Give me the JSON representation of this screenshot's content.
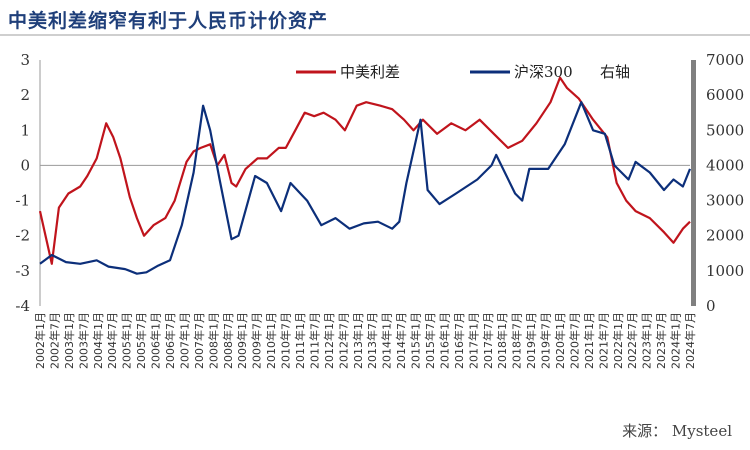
{
  "title": "中美利差缩窄有利于人民币计价资产",
  "source": "来源： Mysteel",
  "colors": {
    "series1": "#c0141c",
    "series2": "#0c2f7a",
    "right_axis_bar": "#808080",
    "title": "#1f3f7a"
  },
  "chart_data": {
    "type": "line",
    "grid": false,
    "legend": "top",
    "y_left": {
      "ylim": [
        -4,
        3
      ],
      "ticks": [
        "3",
        "2",
        "1",
        "0",
        "-1",
        "-2",
        "-3",
        "-4"
      ]
    },
    "y_right": {
      "label": "右轴",
      "ylim": [
        0,
        7000
      ],
      "ticks": [
        "7000",
        "6000",
        "5000",
        "4000",
        "3000",
        "2000",
        "1000",
        "0"
      ]
    },
    "x_ticks": [
      "2002年1月",
      "2002年7月",
      "2003年1月",
      "2003年7月",
      "2004年1月",
      "2004年7月",
      "2005年1月",
      "2005年7月",
      "2006年1月",
      "2006年7月",
      "2007年1月",
      "2007年7月",
      "2008年1月",
      "2008年7月",
      "2009年1月",
      "2009年7月",
      "2010年1月",
      "2010年7月",
      "2011年1月",
      "2011年7月",
      "2012年1月",
      "2012年7月",
      "2013年1月",
      "2013年7月",
      "2014年1月",
      "2014年7月",
      "2015年1月",
      "2015年7月",
      "2016年1月",
      "2016年7月",
      "2017年1月",
      "2017年7月",
      "2018年1月",
      "2018年7月",
      "2019年1月",
      "2019年7月",
      "2020年1月",
      "2020年7月",
      "2021年1月",
      "2021年7月",
      "2022年1月",
      "2022年7月",
      "2023年1月",
      "2023年7月",
      "2024年1月",
      "2024年7月"
    ],
    "series": [
      {
        "name": "中美利差",
        "axis": "left",
        "points": [
          [
            "2002-01",
            -1.3
          ],
          [
            "2002-04",
            -2.2
          ],
          [
            "2002-06",
            -2.8
          ],
          [
            "2002-09",
            -1.2
          ],
          [
            "2003-01",
            -0.8
          ],
          [
            "2003-06",
            -0.6
          ],
          [
            "2003-09",
            -0.3
          ],
          [
            "2004-01",
            0.2
          ],
          [
            "2004-05",
            1.2
          ],
          [
            "2004-08",
            0.8
          ],
          [
            "2004-11",
            0.2
          ],
          [
            "2005-03",
            -0.9
          ],
          [
            "2005-06",
            -1.5
          ],
          [
            "2005-09",
            -2.0
          ],
          [
            "2006-01",
            -1.7
          ],
          [
            "2006-06",
            -1.5
          ],
          [
            "2006-10",
            -1.0
          ],
          [
            "2007-03",
            0.1
          ],
          [
            "2007-06",
            0.4
          ],
          [
            "2007-09",
            0.5
          ],
          [
            "2008-01",
            0.6
          ],
          [
            "2008-04",
            0.0
          ],
          [
            "2008-07",
            0.3
          ],
          [
            "2008-10",
            -0.5
          ],
          [
            "2008-12",
            -0.6
          ],
          [
            "2009-04",
            -0.1
          ],
          [
            "2009-09",
            0.2
          ],
          [
            "2010-01",
            0.2
          ],
          [
            "2010-06",
            0.5
          ],
          [
            "2010-09",
            0.5
          ],
          [
            "2011-01",
            1.0
          ],
          [
            "2011-05",
            1.5
          ],
          [
            "2011-09",
            1.4
          ],
          [
            "2012-01",
            1.5
          ],
          [
            "2012-06",
            1.3
          ],
          [
            "2012-10",
            1.0
          ],
          [
            "2013-03",
            1.7
          ],
          [
            "2013-07",
            1.8
          ],
          [
            "2014-01",
            1.7
          ],
          [
            "2014-06",
            1.6
          ],
          [
            "2014-11",
            1.3
          ],
          [
            "2015-03",
            1.0
          ],
          [
            "2015-07",
            1.3
          ],
          [
            "2016-01",
            0.9
          ],
          [
            "2016-07",
            1.2
          ],
          [
            "2017-01",
            1.0
          ],
          [
            "2017-07",
            1.3
          ],
          [
            "2018-01",
            0.9
          ],
          [
            "2018-07",
            0.5
          ],
          [
            "2019-01",
            0.7
          ],
          [
            "2019-07",
            1.2
          ],
          [
            "2020-01",
            1.8
          ],
          [
            "2020-05",
            2.5
          ],
          [
            "2020-08",
            2.2
          ],
          [
            "2021-01",
            1.9
          ],
          [
            "2021-07",
            1.3
          ],
          [
            "2022-01",
            0.8
          ],
          [
            "2022-05",
            -0.5
          ],
          [
            "2022-09",
            -1.0
          ],
          [
            "2023-01",
            -1.3
          ],
          [
            "2023-07",
            -1.5
          ],
          [
            "2024-01",
            -1.9
          ],
          [
            "2024-05",
            -2.2
          ],
          [
            "2024-09",
            -1.8
          ],
          [
            "2024-12",
            -1.6
          ]
        ]
      },
      {
        "name": "沪深300",
        "axis": "right",
        "points": [
          [
            "2002-01",
            1200
          ],
          [
            "2002-06",
            1450
          ],
          [
            "2002-12",
            1250
          ],
          [
            "2003-06",
            1200
          ],
          [
            "2004-01",
            1300
          ],
          [
            "2004-06",
            1120
          ],
          [
            "2005-01",
            1050
          ],
          [
            "2005-06",
            920
          ],
          [
            "2005-10",
            960
          ],
          [
            "2006-03",
            1150
          ],
          [
            "2006-08",
            1300
          ],
          [
            "2007-01",
            2300
          ],
          [
            "2007-06",
            3800
          ],
          [
            "2007-10",
            5700
          ],
          [
            "2008-01",
            5000
          ],
          [
            "2008-05",
            3600
          ],
          [
            "2008-10",
            1900
          ],
          [
            "2009-01",
            2000
          ],
          [
            "2009-08",
            3700
          ],
          [
            "2010-01",
            3500
          ],
          [
            "2010-07",
            2700
          ],
          [
            "2010-11",
            3500
          ],
          [
            "2011-06",
            3000
          ],
          [
            "2011-12",
            2300
          ],
          [
            "2012-06",
            2500
          ],
          [
            "2012-12",
            2200
          ],
          [
            "2013-06",
            2350
          ],
          [
            "2013-12",
            2400
          ],
          [
            "2014-06",
            2200
          ],
          [
            "2014-09",
            2400
          ],
          [
            "2014-12",
            3500
          ],
          [
            "2015-06",
            5300
          ],
          [
            "2015-09",
            3300
          ],
          [
            "2016-02",
            2900
          ],
          [
            "2016-09",
            3200
          ],
          [
            "2017-06",
            3600
          ],
          [
            "2017-12",
            4000
          ],
          [
            "2018-02",
            4300
          ],
          [
            "2018-10",
            3200
          ],
          [
            "2019-01",
            3000
          ],
          [
            "2019-04",
            3900
          ],
          [
            "2019-12",
            3900
          ],
          [
            "2020-07",
            4600
          ],
          [
            "2021-02",
            5800
          ],
          [
            "2021-07",
            5000
          ],
          [
            "2021-12",
            4900
          ],
          [
            "2022-04",
            4000
          ],
          [
            "2022-10",
            3600
          ],
          [
            "2023-01",
            4100
          ],
          [
            "2023-07",
            3800
          ],
          [
            "2024-01",
            3300
          ],
          [
            "2024-05",
            3600
          ],
          [
            "2024-09",
            3400
          ],
          [
            "2024-12",
            3900
          ]
        ]
      }
    ]
  }
}
